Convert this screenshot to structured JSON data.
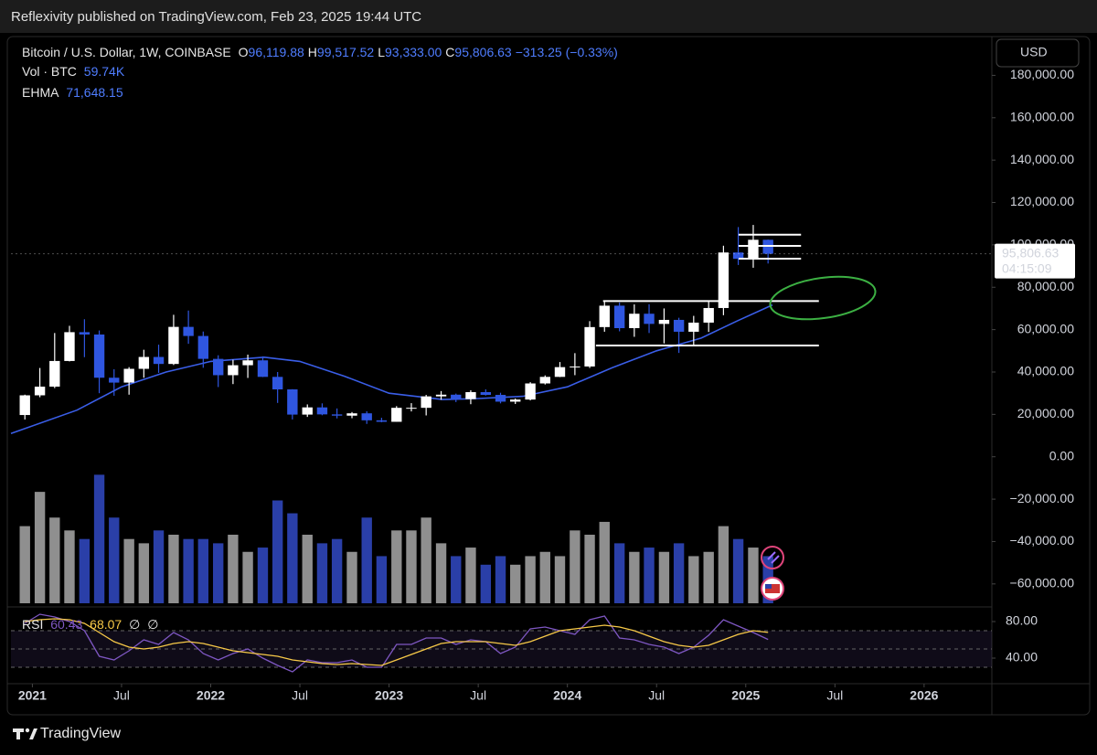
{
  "header": {
    "publisher": "Reflexivity published on TradingView.com, Feb 23, 2025 19:44 UTC"
  },
  "footer": {
    "brand": "TradingView"
  },
  "currency": "USD",
  "chart_data": {
    "type": "candlestick",
    "title": "Bitcoin / U.S. Dollar, 1W, COINBASE",
    "ohlc_legend": [
      {
        "key": "O",
        "value": 96119.88,
        "label": "96,119.88"
      },
      {
        "key": "H",
        "value": 99517.52,
        "label": "99,517.52"
      },
      {
        "key": "L",
        "value": 93333.0,
        "label": "93,333.00"
      },
      {
        "key": "C",
        "value": 95806.63,
        "label": "95,806.63"
      }
    ],
    "change": {
      "value": -313.25,
      "label": "−313.25 (−0.33%)"
    },
    "x": [
      2020.958,
      2021.042,
      2021.125,
      2021.208,
      2021.292,
      2021.375,
      2021.458,
      2021.542,
      2021.625,
      2021.708,
      2021.792,
      2021.875,
      2021.958,
      2022.042,
      2022.125,
      2022.208,
      2022.292,
      2022.375,
      2022.458,
      2022.542,
      2022.625,
      2022.708,
      2022.792,
      2022.875,
      2022.958,
      2023.042,
      2023.125,
      2023.208,
      2023.292,
      2023.375,
      2023.458,
      2023.542,
      2023.625,
      2023.708,
      2023.792,
      2023.875,
      2023.958,
      2024.042,
      2024.125,
      2024.208,
      2024.292,
      2024.375,
      2024.458,
      2024.542,
      2024.625,
      2024.708,
      2024.792,
      2024.875,
      2024.958,
      2025.042,
      2025.125
    ],
    "open": [
      19700,
      29000,
      33100,
      45200,
      58800,
      57700,
      37300,
      35000,
      41500,
      47100,
      43800,
      61300,
      57000,
      46200,
      38500,
      43200,
      45500,
      37700,
      31800,
      19900,
      23300,
      20000,
      19400,
      20500,
      17200,
      16500,
      23100,
      23100,
      28500,
      29300,
      27200,
      30500,
      29200,
      26000,
      27000,
      34600,
      37700,
      42300,
      42600,
      61200,
      71300,
      60700,
      67500,
      62700,
      64600,
      59000,
      63300,
      70200,
      96400,
      93400,
      102400
    ],
    "high": [
      29300,
      41900,
      58400,
      61800,
      64900,
      59600,
      41300,
      42300,
      50500,
      52900,
      67000,
      69000,
      59100,
      47900,
      45800,
      48200,
      47400,
      40000,
      31900,
      24700,
      25200,
      22800,
      21100,
      21500,
      18400,
      23900,
      25300,
      29200,
      31000,
      29800,
      31400,
      31800,
      30200,
      27500,
      35200,
      38400,
      44700,
      48900,
      64000,
      73800,
      72800,
      71900,
      72000,
      70000,
      65600,
      66500,
      73600,
      99600,
      108400,
      109400,
      102500
    ],
    "low": [
      17600,
      28100,
      32400,
      45000,
      47000,
      30000,
      28800,
      29300,
      37300,
      39600,
      43300,
      53300,
      42000,
      32900,
      34300,
      37200,
      37600,
      25400,
      17600,
      18800,
      19600,
      18100,
      18200,
      15500,
      16300,
      16500,
      21400,
      19500,
      26900,
      25800,
      24800,
      28900,
      25200,
      24900,
      26600,
      34100,
      37600,
      38500,
      41900,
      59000,
      59200,
      56600,
      58400,
      53500,
      49000,
      52600,
      58900,
      66800,
      90500,
      89200,
      91200
    ],
    "close": [
      29000,
      33100,
      45200,
      58800,
      57700,
      37300,
      35000,
      41500,
      47100,
      43800,
      61300,
      57000,
      46200,
      38500,
      43200,
      45500,
      37700,
      31800,
      19900,
      23300,
      20000,
      19400,
      20500,
      17200,
      16500,
      23100,
      23100,
      28500,
      29300,
      27200,
      30500,
      29200,
      26000,
      27000,
      34600,
      37700,
      42300,
      42600,
      61200,
      71300,
      60700,
      67500,
      62700,
      64600,
      59000,
      63300,
      70200,
      96400,
      93400,
      102400,
      95806.63
    ],
    "up_color": "#ffffff",
    "down_color": "#2f56e0",
    "xlim": [
      2020.88,
      2026.38
    ],
    "xticks": [
      {
        "value": 2021,
        "label": "2021"
      },
      {
        "value": 2021.5,
        "label": "Jul"
      },
      {
        "value": 2022,
        "label": "2022"
      },
      {
        "value": 2022.5,
        "label": "Jul"
      },
      {
        "value": 2023,
        "label": "2023"
      },
      {
        "value": 2023.5,
        "label": "Jul"
      },
      {
        "value": 2024,
        "label": "2024"
      },
      {
        "value": 2024.5,
        "label": "Jul"
      },
      {
        "value": 2025,
        "label": "2025"
      },
      {
        "value": 2025.5,
        "label": "Jul"
      },
      {
        "value": 2026,
        "label": "2026"
      }
    ],
    "ylim": [
      -70000,
      198300
    ],
    "yticks": [
      {
        "value": 180000,
        "label": "180,000.00"
      },
      {
        "value": 160000,
        "label": "160,000.00"
      },
      {
        "value": 140000,
        "label": "140,000.00"
      },
      {
        "value": 120000,
        "label": "120,000.00"
      },
      {
        "value": 100000,
        "label": "100,000.00"
      },
      {
        "value": 80000,
        "label": "80,000.00"
      },
      {
        "value": 60000,
        "label": "60,000.00"
      },
      {
        "value": 40000,
        "label": "40,000.00"
      },
      {
        "value": 20000,
        "label": "20,000.00"
      },
      {
        "value": 0,
        "label": "0.00"
      },
      {
        "value": -20000,
        "label": "−20,000.00"
      },
      {
        "value": -40000,
        "label": "−40,000.00"
      },
      {
        "value": -60000,
        "label": "−60,000.00"
      }
    ],
    "last_price": {
      "value": 95806.63,
      "label": "95,806.63"
    },
    "countdown": "04:15:09",
    "volume": {
      "name": "Vol · BTC",
      "last": {
        "value": 59.74,
        "label": "59.74K"
      },
      "lim": [
        0,
        320
      ],
      "values": [
        180,
        260,
        200,
        170,
        150,
        300,
        200,
        150,
        140,
        170,
        160,
        150,
        150,
        140,
        160,
        120,
        130,
        240,
        210,
        160,
        140,
        150,
        120,
        200,
        110,
        170,
        170,
        200,
        140,
        110,
        130,
        90,
        110,
        90,
        110,
        120,
        110,
        170,
        160,
        190,
        140,
        120,
        130,
        120,
        140,
        110,
        120,
        180,
        150,
        130,
        110
      ],
      "up_color": "#8f8f8f",
      "down_color": "#2a3fa8"
    },
    "ehma": {
      "name": "EHMA",
      "last": {
        "value": 71648.15,
        "label": "71,648.15"
      },
      "color": "#3a5ee8",
      "x": [
        2020.88,
        2021.25,
        2021.5,
        2021.75,
        2022.0,
        2022.3,
        2022.5,
        2022.75,
        2023.0,
        2023.3,
        2023.5,
        2023.75,
        2024.0,
        2024.25,
        2024.5,
        2024.75,
        2024.95,
        2025.15
      ],
      "values": [
        11000,
        22000,
        33000,
        40000,
        45000,
        47000,
        45000,
        38000,
        30000,
        27000,
        27500,
        28500,
        33000,
        42000,
        50000,
        56000,
        64000,
        71648.15
      ]
    },
    "drawings": {
      "color": "#ffffff",
      "lines": [
        {
          "value": 104800,
          "x": [
            2024.96,
            2025.31
          ]
        },
        {
          "value": 99500,
          "x": [
            2024.96,
            2025.31
          ]
        },
        {
          "value": 93500,
          "x": [
            2024.96,
            2025.31
          ]
        },
        {
          "value": 73500,
          "x": [
            2024.2,
            2025.41
          ]
        },
        {
          "value": 52500,
          "x": [
            2024.16,
            2025.41
          ]
        }
      ]
    },
    "rsi": {
      "name": "RSI",
      "color": "#7e57c2",
      "ma_color": "#f7c948",
      "values": [
        78,
        88,
        85,
        80,
        70,
        42,
        38,
        48,
        60,
        55,
        68,
        60,
        45,
        38,
        45,
        50,
        40,
        32,
        25,
        38,
        35,
        35,
        38,
        30,
        30,
        55,
        55,
        62,
        62,
        55,
        60,
        58,
        45,
        52,
        72,
        74,
        70,
        66,
        82,
        86,
        62,
        60,
        55,
        52,
        45,
        52,
        65,
        82,
        75,
        68,
        60.43
      ],
      "ma": [
        80,
        82,
        83,
        82,
        78,
        68,
        58,
        52,
        50,
        52,
        56,
        58,
        56,
        52,
        48,
        46,
        44,
        42,
        38,
        36,
        34,
        33,
        34,
        33,
        32,
        38,
        44,
        50,
        56,
        58,
        58,
        58,
        56,
        54,
        58,
        64,
        70,
        72,
        74,
        76,
        74,
        70,
        64,
        58,
        54,
        52,
        54,
        60,
        66,
        70,
        68.07
      ],
      "last": 60.43,
      "ma_last": 68.07,
      "extra": [
        "∅",
        "∅"
      ],
      "ylim": [
        15,
        92
      ],
      "yticks": [
        {
          "value": 80,
          "label": "80.00"
        },
        {
          "value": 40,
          "label": "40.00"
        }
      ],
      "bands": [
        70,
        50,
        30
      ]
    }
  }
}
